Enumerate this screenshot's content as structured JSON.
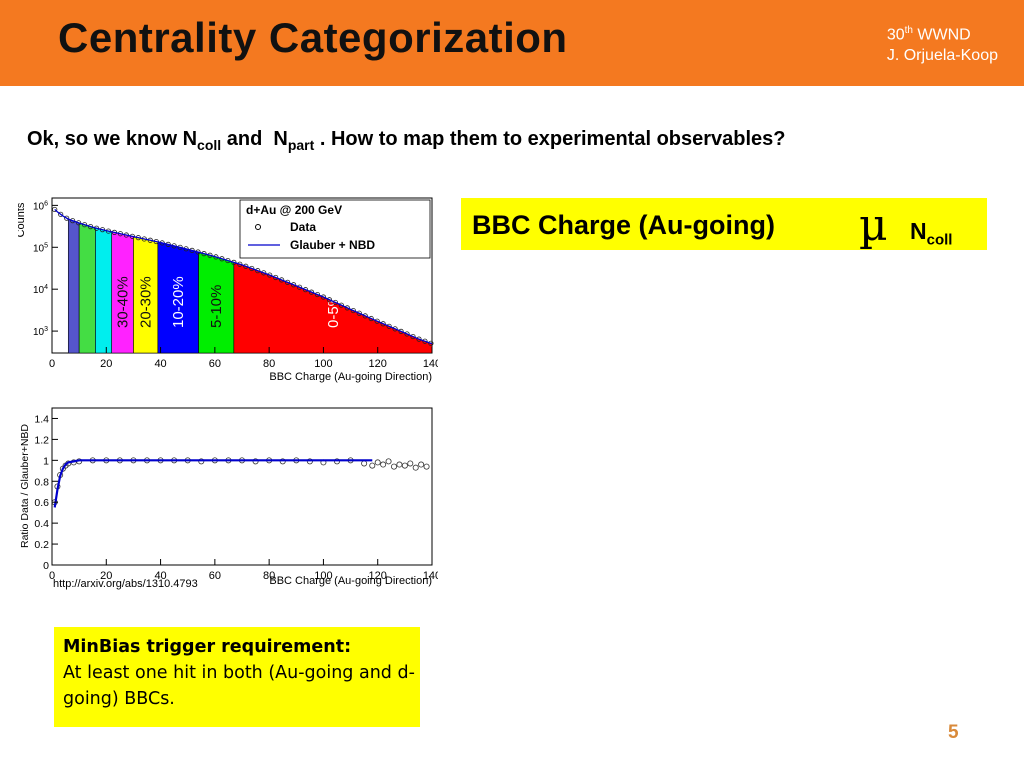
{
  "slide": {
    "title": "Centrality Categorization",
    "conference_sup": "th",
    "conference_num": "30",
    "conference_name": "WWND",
    "author": "J. Orjuela-Koop",
    "question_prefix": "Ok, so we know N",
    "question_sub1": "coll",
    "question_mid": " and  N",
    "question_sub2": "part",
    "question_suffix": " . How to map them to experimental observables?",
    "bbc_text": "BBC Charge (Au-going)",
    "bbc_symbol": "µ",
    "bbc_n": "N",
    "bbc_sub": "coll",
    "reference": "http://arxiv.org/abs/1310.4793",
    "minbias_heading": "MinBias trigger requirement:",
    "minbias_body": "At least one hit in both (Au-going and d-going) BBCs.",
    "page_number": "5"
  },
  "colors": {
    "header": "#f47920",
    "highlight": "#ffff00",
    "bin_blue": "#5555cc",
    "bin_green": "#44dd44",
    "bin_cyan": "#00eeee",
    "bin_magenta": "#ff22ff",
    "bin_yellow": "#ffff00",
    "bin_darkblue": "#0000ff",
    "bin_green2": "#00ee00",
    "bin_red": "#ff0000",
    "fit_line": "#0000cc"
  },
  "chart_data": [
    {
      "type": "area",
      "legend": {
        "title": "d+Au @ 200 GeV",
        "entries": [
          "Data",
          "Glauber + NBD"
        ],
        "placement": "top-right"
      },
      "xlabel": "BBC Charge (Au-going Direction)",
      "ylabel": "Counts",
      "xlim": [
        0,
        140
      ],
      "ylim_log": [
        300,
        1500000
      ],
      "xticks": [
        "0",
        "20",
        "40",
        "60",
        "80",
        "100",
        "120",
        "140"
      ],
      "yticks": [
        {
          "base": "10",
          "exp": "3",
          "value": 1000
        },
        {
          "base": "10",
          "exp": "4",
          "value": 10000
        },
        {
          "base": "10",
          "exp": "5",
          "value": 100000
        },
        {
          "base": "10",
          "exp": "6",
          "value": 1000000
        }
      ],
      "log_y": true,
      "centrality_bins": [
        {
          "label": "",
          "x0": 6,
          "x1": 10,
          "color": "bin_blue"
        },
        {
          "label": "",
          "x0": 10,
          "x1": 16,
          "color": "bin_green"
        },
        {
          "label": "",
          "x0": 16,
          "x1": 22,
          "color": "bin_cyan"
        },
        {
          "label": "30-40%",
          "x0": 22,
          "x1": 30,
          "color": "bin_magenta"
        },
        {
          "label": "20-30%",
          "x0": 30,
          "x1": 39,
          "color": "bin_yellow"
        },
        {
          "label": "10-20%",
          "x0": 39,
          "x1": 54,
          "color": "bin_darkblue"
        },
        {
          "label": "5-10%",
          "x0": 54,
          "x1": 67,
          "color": "bin_green2"
        },
        {
          "label": "0-5%",
          "x0": 67,
          "x1": 140,
          "color": "bin_red"
        }
      ],
      "series": [
        {
          "name": "Data",
          "x": [
            1,
            2,
            4,
            6,
            10,
            15,
            20,
            30,
            40,
            50,
            60,
            70,
            80,
            90,
            100,
            110,
            120,
            130,
            135,
            140
          ],
          "y": [
            800000,
            700000,
            560000,
            470000,
            380000,
            300000,
            250000,
            180000,
            130000,
            90000,
            60000,
            38000,
            22000,
            12000,
            6500,
            3300,
            1700,
            900,
            650,
            500
          ]
        },
        {
          "name": "Glauber + NBD",
          "x": [
            1,
            2,
            4,
            6,
            10,
            15,
            20,
            30,
            40,
            50,
            60,
            70,
            80,
            90,
            100,
            110,
            120,
            130,
            135,
            140
          ],
          "y": [
            800000,
            700000,
            560000,
            470000,
            380000,
            300000,
            250000,
            180000,
            130000,
            90000,
            60000,
            38000,
            22000,
            12000,
            6500,
            3300,
            1700,
            900,
            650,
            500
          ]
        }
      ]
    },
    {
      "type": "scatter",
      "xlabel": "BBC Charge (Au-going Direction)",
      "ylabel": "Ratio Data / Glauber+NBD",
      "xlim": [
        0,
        140
      ],
      "ylim": [
        0,
        1.5
      ],
      "xticks": [
        "0",
        "20",
        "40",
        "60",
        "80",
        "100",
        "120",
        "140"
      ],
      "yticks": [
        "0",
        "0.2",
        "0.4",
        "0.6",
        "0.8",
        "1",
        "1.2",
        "1.4"
      ],
      "series": [
        {
          "name": "Data",
          "x": [
            1,
            2,
            3,
            4,
            5,
            6,
            8,
            10,
            15,
            20,
            25,
            30,
            35,
            40,
            45,
            50,
            55,
            60,
            65,
            70,
            75,
            80,
            85,
            90,
            95,
            100,
            105,
            110,
            115,
            118,
            120,
            122,
            124,
            126,
            128,
            130,
            132,
            134,
            136,
            138
          ],
          "y": [
            0.6,
            0.75,
            0.86,
            0.92,
            0.95,
            0.97,
            0.98,
            0.99,
            1.0,
            1.0,
            1.0,
            1.0,
            1.0,
            1.0,
            1.0,
            1.0,
            0.99,
            1.0,
            1.0,
            1.0,
            0.99,
            1.0,
            0.99,
            1.0,
            0.99,
            0.98,
            0.99,
            1.0,
            0.97,
            0.95,
            0.98,
            0.96,
            0.99,
            0.94,
            0.96,
            0.95,
            0.97,
            0.93,
            0.96,
            0.94
          ]
        },
        {
          "name": "Fit",
          "x": [
            1,
            2,
            3,
            4,
            5,
            6,
            8,
            10,
            20,
            40,
            60,
            80,
            100,
            118
          ],
          "y": [
            0.55,
            0.72,
            0.85,
            0.92,
            0.96,
            0.98,
            0.99,
            1.0,
            1.0,
            1.0,
            1.0,
            1.0,
            1.0,
            1.0
          ]
        }
      ]
    }
  ]
}
